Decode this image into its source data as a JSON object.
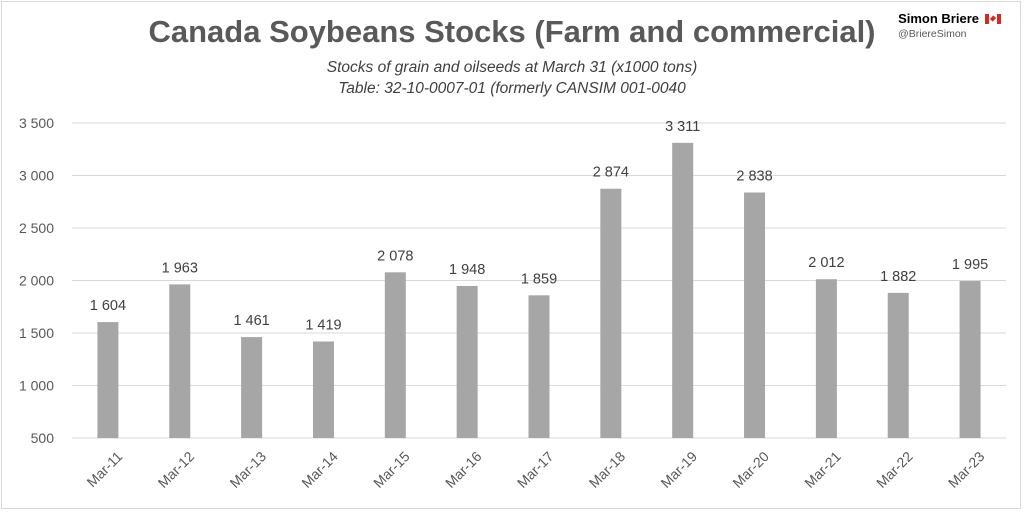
{
  "header": {
    "title": "Canada Soybeans Stocks (Farm and commercial)",
    "subtitle_line1": "Stocks of grain and oilseeds at March 31 (x1000 tons)",
    "subtitle_line2": "Table: 32-10-0007-01 (formerly CANSIM 001-0040"
  },
  "brand": {
    "name": "Simon Briere",
    "handle": "@BriereSimon",
    "flag_icon": "canada-flag-icon"
  },
  "colors": {
    "bar": "#a6a6a6",
    "grid": "#d9d9d9",
    "title": "#595959"
  },
  "chart_data": {
    "type": "bar",
    "categories": [
      "Mar-11",
      "Mar-12",
      "Mar-13",
      "Mar-14",
      "Mar-15",
      "Mar-16",
      "Mar-17",
      "Mar-18",
      "Mar-19",
      "Mar-20",
      "Mar-21",
      "Mar-22",
      "Mar-23"
    ],
    "values": [
      1604,
      1963,
      1461,
      1419,
      2078,
      1948,
      1859,
      2874,
      3311,
      2838,
      2012,
      1882,
      1995
    ],
    "value_labels": [
      "1 604",
      "1 963",
      "1 461",
      "1 419",
      "2 078",
      "1 948",
      "1 859",
      "2 874",
      "3 311",
      "2 838",
      "2 012",
      "1 882",
      "1 995"
    ],
    "yticks": [
      500,
      1000,
      1500,
      2000,
      2500,
      3000,
      3500
    ],
    "ytick_labels": [
      "500",
      "1 000",
      "1 500",
      "2 000",
      "2 500",
      "3 000",
      "3 500"
    ],
    "ylim": [
      500,
      3500
    ],
    "grid": true,
    "legend": "none",
    "xlabel": "",
    "ylabel": ""
  }
}
